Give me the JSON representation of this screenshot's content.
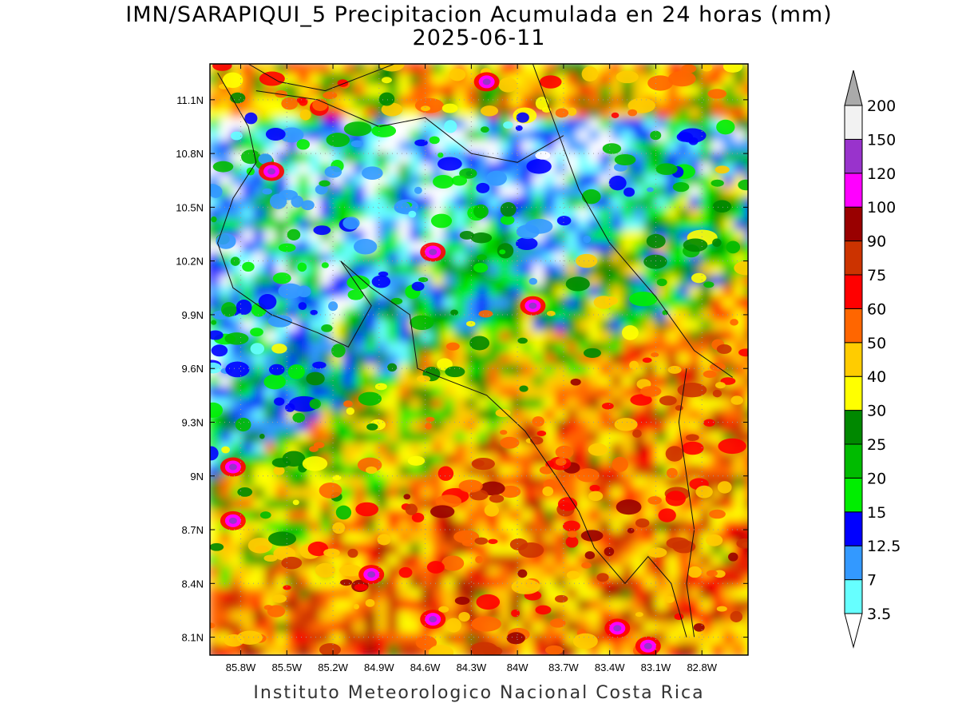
{
  "title_line1": "IMN/SARAPIQUI_5 Precipitacion Acumulada en 24 horas (mm)",
  "title_line2": "2025-06-11",
  "footer": "Instituto Meteorologico Nacional Costa Rica",
  "map": {
    "lon_range": [
      -86.0,
      -82.5
    ],
    "lat_range": [
      8.0,
      11.3
    ],
    "lon_ticks": [
      "85.8W",
      "85.5W",
      "85.2W",
      "84.9W",
      "84.6W",
      "84.3W",
      "84W",
      "83.7W",
      "83.4W",
      "83.1W",
      "82.8W"
    ],
    "lat_ticks": [
      "8.1N",
      "8.4N",
      "8.7N",
      "9N",
      "9.3N",
      "9.6N",
      "9.9N",
      "10.2N",
      "10.5N",
      "10.8N",
      "11.1N"
    ],
    "lon_tick_values": [
      -85.8,
      -85.5,
      -85.2,
      -84.9,
      -84.6,
      -84.3,
      -84.0,
      -83.7,
      -83.4,
      -83.1,
      -82.8
    ],
    "lat_tick_values": [
      8.1,
      8.4,
      8.7,
      9.0,
      9.3,
      9.6,
      9.9,
      10.2,
      10.5,
      10.8,
      11.1
    ],
    "grid_lines": "dotted"
  },
  "legend": {
    "unit": "mm",
    "levels": [
      "3.5",
      "7",
      "12.5",
      "15",
      "20",
      "25",
      "30",
      "40",
      "50",
      "60",
      "75",
      "90",
      "100",
      "120",
      "150",
      "200"
    ],
    "colors": [
      "#66ffff",
      "#3399ff",
      "#0000ff",
      "#00ee00",
      "#00bb00",
      "#008800",
      "#ffff00",
      "#ffcc00",
      "#ff6600",
      "#ff0000",
      "#cc3300",
      "#990000",
      "#ff00ff",
      "#9933cc",
      "#f2f2f2"
    ],
    "below_color": "#ffffff",
    "above_color": "#aaaaaa"
  }
}
